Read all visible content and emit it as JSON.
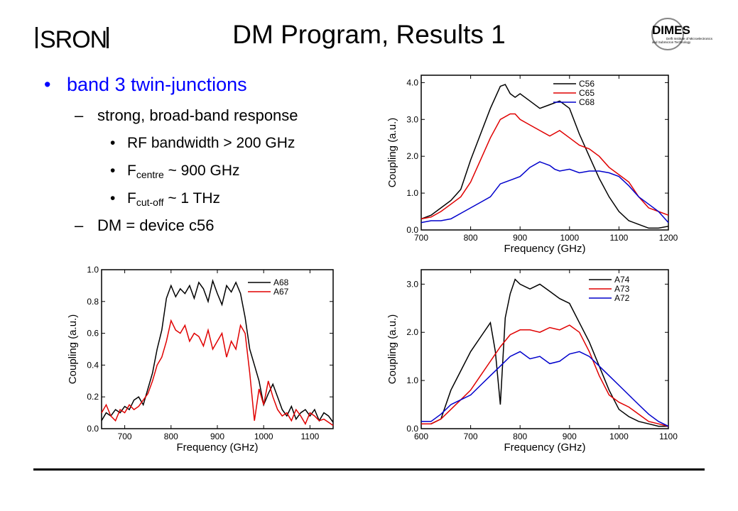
{
  "slide": {
    "title": "DM Program, Results 1",
    "logo_left_text": "SRON",
    "logo_right_text": "DIMES",
    "logo_right_subtitle_1": "Delft Institute of Microelectronics",
    "logo_right_subtitle_2": "and Submicron Technology"
  },
  "bullets": {
    "b1": "band 3 twin-junctions",
    "b1_1_dash": "–",
    "b1_1": "strong, broad-band response",
    "b1_1_a": "RF bandwidth > 200 GHz",
    "b1_1_b_main": "F",
    "b1_1_b_sub": "centre",
    "b1_1_b_rest": " ~ 900 GHz",
    "b1_1_c_main": "F",
    "b1_1_c_sub": "cut-off",
    "b1_1_c_rest": " ~ 1 THz",
    "b1_2_dash": "–",
    "b1_2": "DM = device c56",
    "bullet_char": "•"
  },
  "colors": {
    "black": "#000000",
    "red": "#e00000",
    "blue": "#0000cc",
    "bullet_blue": "#0000ff"
  },
  "chart_data": [
    {
      "id": "chart-top-right",
      "type": "line",
      "xlabel": "Frequency (GHz)",
      "ylabel": "Coupling (a.u.)",
      "xlim": [
        700,
        1200
      ],
      "ylim": [
        0,
        4.2
      ],
      "xticks": [
        700,
        800,
        900,
        1000,
        1100,
        1200
      ],
      "yticks": [
        0,
        1,
        2,
        3,
        4
      ],
      "ytick_labels": [
        "0.0",
        "1.0",
        "2.0",
        "3.0",
        "4.0"
      ],
      "legend_position": "top-right",
      "series": [
        {
          "name": "C56",
          "color": "#000000",
          "x": [
            700,
            720,
            740,
            760,
            780,
            800,
            820,
            840,
            860,
            870,
            880,
            890,
            900,
            920,
            940,
            960,
            980,
            1000,
            1020,
            1040,
            1060,
            1080,
            1100,
            1120,
            1140,
            1160,
            1180,
            1200
          ],
          "y": [
            0.3,
            0.4,
            0.6,
            0.8,
            1.1,
            1.9,
            2.6,
            3.3,
            3.9,
            3.95,
            3.7,
            3.6,
            3.7,
            3.5,
            3.3,
            3.4,
            3.5,
            3.3,
            2.6,
            2.0,
            1.4,
            0.9,
            0.5,
            0.25,
            0.15,
            0.05,
            0.05,
            0.1
          ]
        },
        {
          "name": "C65",
          "color": "#e00000",
          "x": [
            700,
            720,
            740,
            760,
            780,
            800,
            820,
            840,
            860,
            880,
            890,
            900,
            920,
            940,
            960,
            980,
            1000,
            1020,
            1040,
            1060,
            1080,
            1100,
            1120,
            1140,
            1160,
            1180,
            1200
          ],
          "y": [
            0.3,
            0.35,
            0.5,
            0.7,
            0.9,
            1.3,
            1.9,
            2.5,
            3.0,
            3.15,
            3.15,
            3.0,
            2.85,
            2.7,
            2.55,
            2.7,
            2.5,
            2.3,
            2.2,
            2.0,
            1.7,
            1.5,
            1.3,
            0.9,
            0.6,
            0.5,
            0.4
          ]
        },
        {
          "name": "C68",
          "color": "#0000cc",
          "x": [
            700,
            720,
            740,
            760,
            780,
            800,
            820,
            840,
            860,
            880,
            900,
            920,
            940,
            960,
            970,
            980,
            1000,
            1020,
            1040,
            1060,
            1080,
            1100,
            1120,
            1140,
            1160,
            1180,
            1200
          ],
          "y": [
            0.2,
            0.25,
            0.25,
            0.3,
            0.45,
            0.6,
            0.75,
            0.9,
            1.25,
            1.35,
            1.45,
            1.7,
            1.85,
            1.75,
            1.65,
            1.6,
            1.65,
            1.55,
            1.6,
            1.6,
            1.55,
            1.45,
            1.2,
            0.9,
            0.7,
            0.5,
            0.2
          ]
        }
      ]
    },
    {
      "id": "chart-bottom-left",
      "type": "line",
      "xlabel": "Frequency (GHz)",
      "ylabel": "Coupling (a.u.)",
      "xlim": [
        650,
        1150
      ],
      "ylim": [
        0,
        1.0
      ],
      "xticks": [
        700,
        800,
        900,
        1000,
        1100
      ],
      "yticks": [
        0,
        0.2,
        0.4,
        0.6,
        0.8,
        1.0
      ],
      "ytick_labels": [
        "0.0",
        "0.2",
        "0.4",
        "0.6",
        "0.8",
        "1.0"
      ],
      "legend_position": "top-right",
      "series": [
        {
          "name": "A68",
          "color": "#000000",
          "x": [
            650,
            660,
            670,
            680,
            690,
            700,
            710,
            720,
            730,
            740,
            750,
            760,
            770,
            780,
            790,
            800,
            810,
            820,
            830,
            840,
            850,
            860,
            870,
            880,
            890,
            900,
            910,
            920,
            930,
            940,
            950,
            960,
            970,
            980,
            990,
            1000,
            1010,
            1020,
            1030,
            1040,
            1050,
            1060,
            1070,
            1080,
            1090,
            1100,
            1110,
            1120,
            1130,
            1140,
            1150
          ],
          "y": [
            0.05,
            0.1,
            0.08,
            0.12,
            0.1,
            0.14,
            0.12,
            0.18,
            0.2,
            0.15,
            0.25,
            0.35,
            0.5,
            0.62,
            0.82,
            0.9,
            0.83,
            0.88,
            0.85,
            0.9,
            0.82,
            0.92,
            0.88,
            0.8,
            0.93,
            0.85,
            0.78,
            0.9,
            0.86,
            0.92,
            0.85,
            0.7,
            0.5,
            0.4,
            0.3,
            0.15,
            0.22,
            0.28,
            0.2,
            0.12,
            0.08,
            0.14,
            0.06,
            0.1,
            0.12,
            0.08,
            0.12,
            0.05,
            0.1,
            0.08,
            0.04
          ]
        },
        {
          "name": "A67",
          "color": "#e00000",
          "x": [
            650,
            660,
            670,
            680,
            690,
            700,
            710,
            720,
            730,
            740,
            750,
            760,
            770,
            780,
            790,
            800,
            810,
            820,
            830,
            840,
            850,
            860,
            870,
            880,
            890,
            900,
            910,
            920,
            930,
            940,
            950,
            960,
            970,
            980,
            990,
            1000,
            1010,
            1020,
            1030,
            1040,
            1050,
            1060,
            1070,
            1080,
            1090,
            1100,
            1110,
            1120,
            1130,
            1140,
            1150
          ],
          "y": [
            0.1,
            0.15,
            0.08,
            0.05,
            0.12,
            0.1,
            0.15,
            0.12,
            0.14,
            0.18,
            0.22,
            0.3,
            0.4,
            0.45,
            0.55,
            0.68,
            0.62,
            0.6,
            0.65,
            0.55,
            0.6,
            0.58,
            0.52,
            0.62,
            0.5,
            0.55,
            0.6,
            0.45,
            0.55,
            0.5,
            0.65,
            0.6,
            0.35,
            0.05,
            0.25,
            0.15,
            0.3,
            0.2,
            0.12,
            0.08,
            0.1,
            0.05,
            0.12,
            0.08,
            0.03,
            0.1,
            0.08,
            0.05,
            0.06,
            0.04,
            0.02
          ]
        }
      ]
    },
    {
      "id": "chart-bottom-right",
      "type": "line",
      "xlabel": "Frequency (GHz)",
      "ylabel": "Coupling (a.u.)",
      "xlim": [
        600,
        1100
      ],
      "ylim": [
        0,
        3.3
      ],
      "xticks": [
        600,
        700,
        800,
        900,
        1000,
        1100
      ],
      "yticks": [
        0,
        1,
        2,
        3
      ],
      "ytick_labels": [
        "0.0",
        "1.0",
        "2.0",
        "3.0"
      ],
      "legend_position": "top-right",
      "series": [
        {
          "name": "A74",
          "color": "#000000",
          "x": [
            600,
            620,
            640,
            660,
            680,
            700,
            720,
            740,
            750,
            760,
            770,
            780,
            790,
            800,
            820,
            840,
            860,
            880,
            900,
            920,
            940,
            960,
            980,
            1000,
            1020,
            1040,
            1060,
            1080,
            1100
          ],
          "y": [
            0.1,
            0.1,
            0.2,
            0.8,
            1.2,
            1.6,
            1.9,
            2.2,
            1.6,
            0.5,
            2.3,
            2.8,
            3.1,
            3.0,
            2.9,
            3.0,
            2.85,
            2.7,
            2.6,
            2.2,
            1.8,
            1.3,
            0.8,
            0.4,
            0.25,
            0.15,
            0.1,
            0.05,
            0.05
          ]
        },
        {
          "name": "A73",
          "color": "#e00000",
          "x": [
            600,
            620,
            640,
            660,
            680,
            700,
            720,
            740,
            760,
            780,
            800,
            820,
            840,
            860,
            880,
            900,
            920,
            940,
            960,
            980,
            1000,
            1020,
            1040,
            1060,
            1080,
            1100
          ],
          "y": [
            0.1,
            0.1,
            0.2,
            0.4,
            0.6,
            0.8,
            1.1,
            1.4,
            1.7,
            1.95,
            2.05,
            2.05,
            2.0,
            2.1,
            2.05,
            2.15,
            2.0,
            1.6,
            1.1,
            0.7,
            0.55,
            0.45,
            0.3,
            0.15,
            0.1,
            0.05
          ]
        },
        {
          "name": "A72",
          "color": "#0000cc",
          "x": [
            600,
            620,
            640,
            660,
            680,
            700,
            720,
            740,
            760,
            780,
            800,
            820,
            840,
            860,
            880,
            900,
            920,
            940,
            960,
            980,
            1000,
            1020,
            1040,
            1060,
            1080,
            1100
          ],
          "y": [
            0.15,
            0.15,
            0.3,
            0.5,
            0.6,
            0.7,
            0.9,
            1.1,
            1.3,
            1.5,
            1.6,
            1.45,
            1.5,
            1.35,
            1.4,
            1.55,
            1.6,
            1.5,
            1.3,
            1.1,
            0.9,
            0.7,
            0.5,
            0.3,
            0.15,
            0.05
          ]
        }
      ]
    }
  ]
}
